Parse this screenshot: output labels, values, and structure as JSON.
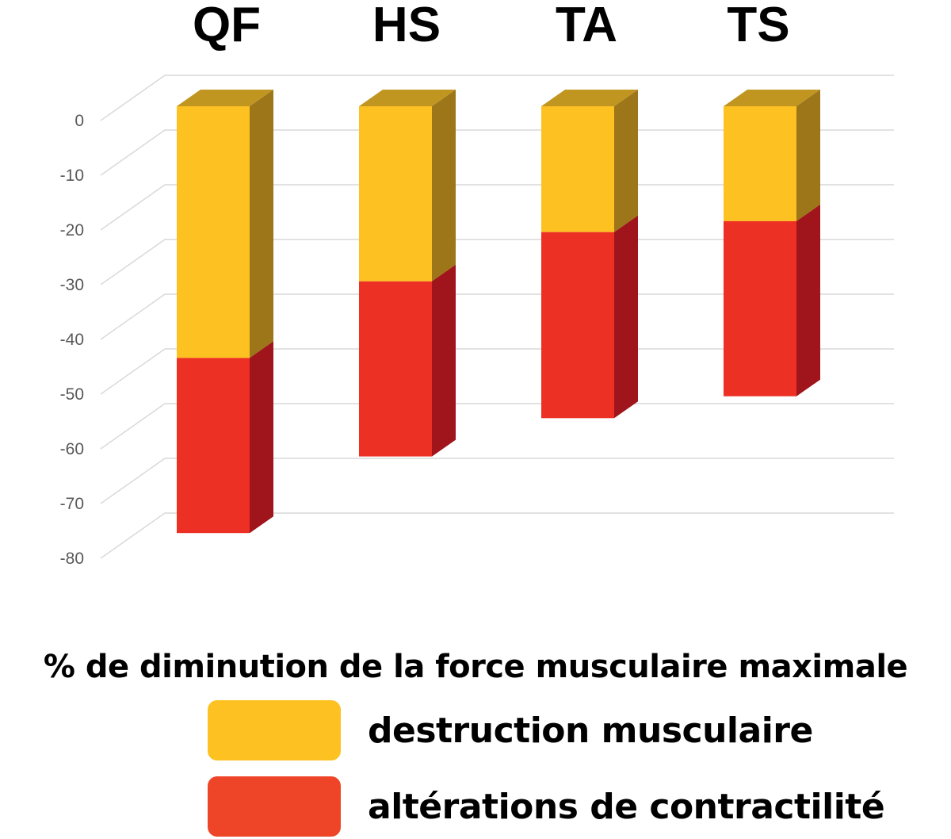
{
  "chart_data": {
    "type": "bar",
    "stacked": true,
    "three_d": true,
    "title": "% de diminution de la force musculaire maximale",
    "categories": [
      "QF",
      "HS",
      "TA",
      "TS"
    ],
    "series": [
      {
        "name": "destruction musculaire",
        "color": "#fdc122",
        "side_color": "#9c7618",
        "top_color": "#c09520",
        "values": [
          -46,
          -32,
          -23,
          -21
        ]
      },
      {
        "name": "altérations de contractilité",
        "color": "#ed3024",
        "side_color": "#a0141b",
        "values": [
          -32,
          -32,
          -34,
          -32
        ]
      }
    ],
    "yticks": [
      "0",
      "-10",
      "-20",
      "-30",
      "-40",
      "-50",
      "-60",
      "-70",
      "-80"
    ],
    "ylim": [
      -80,
      0
    ],
    "grid": true,
    "legend": {
      "position": "bottom",
      "swatch_colors": [
        "#fdc122",
        "#ee4427"
      ]
    }
  }
}
